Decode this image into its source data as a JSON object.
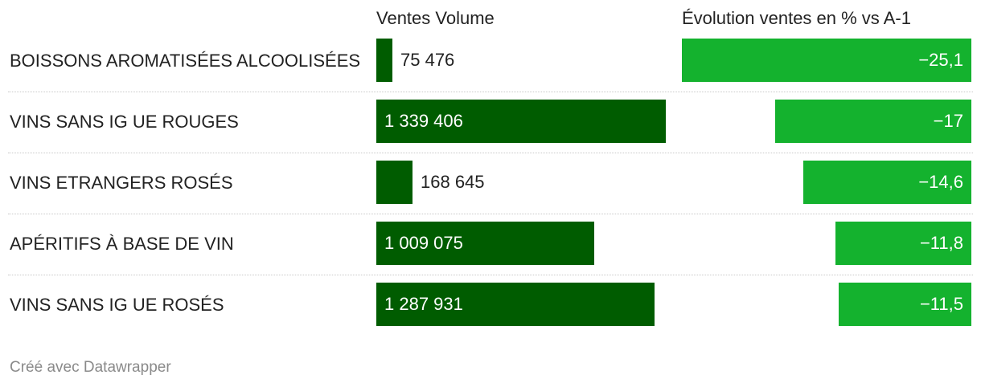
{
  "chart_data": {
    "type": "bar",
    "columns": [
      "Ventes Volume",
      "Évolution ventes en % vs A-1"
    ],
    "rows": [
      {
        "label": "BOISSONS AROMATISÉES ALCOOLISÉES",
        "volume": 75476,
        "volume_label": "75 476",
        "evolution": -25.1,
        "evolution_label": "−25,1"
      },
      {
        "label": "VINS SANS IG UE ROUGES",
        "volume": 1339406,
        "volume_label": "1 339 406",
        "evolution": -17,
        "evolution_label": "−17"
      },
      {
        "label": "VINS ETRANGERS ROSÉS",
        "volume": 168645,
        "volume_label": "168 645",
        "evolution": -14.6,
        "evolution_label": "−14,6"
      },
      {
        "label": "APÉRITIFS À BASE DE VIN",
        "volume": 1009075,
        "volume_label": "1 009 075",
        "evolution": -11.8,
        "evolution_label": "−11,8"
      },
      {
        "label": "VINS SANS IG UE ROSÉS",
        "volume": 1287931,
        "volume_label": "1 287 931",
        "evolution": -11.5,
        "evolution_label": "−11,5"
      }
    ],
    "colors": {
      "volume": "#005c00",
      "evolution": "#14b22e"
    }
  },
  "footer": "Créé avec Datawrapper"
}
